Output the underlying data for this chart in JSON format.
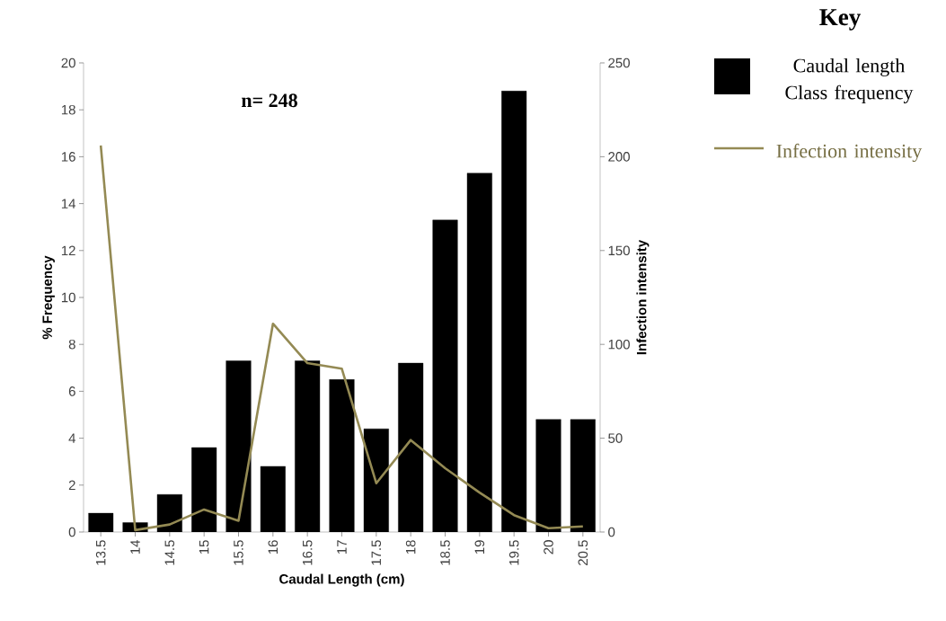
{
  "chart_data": {
    "type": "bar",
    "annotations": [
      "n= 248"
    ],
    "xlabel": "Caudal Length (cm)",
    "ylabel": "% Frequency",
    "y2label": "Infection intensity",
    "legend_title": "Key",
    "categories": [
      "13.5",
      "14",
      "14.5",
      "15",
      "15.5",
      "16",
      "16.5",
      "17",
      "17.5",
      "18",
      "18.5",
      "19",
      "19.5",
      "20",
      "20.5"
    ],
    "series": [
      {
        "name": "Caudal length Class frequency",
        "color": "#000000",
        "values": [
          0.8,
          0.4,
          1.6,
          3.6,
          7.3,
          2.8,
          7.3,
          6.5,
          4.4,
          7.2,
          13.3,
          15.3,
          18.8,
          4.8,
          4.8
        ]
      },
      {
        "name": "Infection intensity",
        "type": "line",
        "axis": "y2",
        "color": "#948a54",
        "values": [
          206,
          1,
          4,
          12,
          6,
          111,
          90,
          87,
          26,
          49,
          34,
          21,
          9,
          2,
          3
        ]
      }
    ],
    "ylim": [
      0,
      20
    ],
    "yticks": [
      0,
      2,
      4,
      6,
      8,
      10,
      12,
      14,
      16,
      18,
      20
    ],
    "y2lim": [
      0,
      250
    ],
    "y2ticks": [
      0,
      50,
      100,
      150,
      200,
      250
    ],
    "grid": false,
    "legend": "top right",
    "marker": "none",
    "line_style": "solid"
  }
}
